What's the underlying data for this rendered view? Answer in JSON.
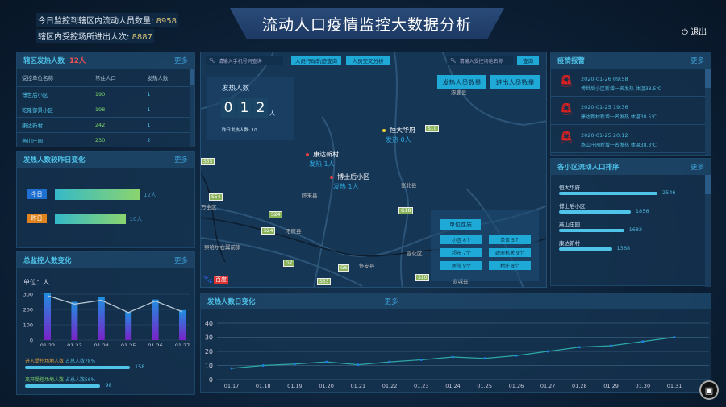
{
  "header": {
    "stat1_label": "今日监控到辖区内流动人员数量:",
    "stat1_value": "8958",
    "stat2_label": "辖区内受控场所进出人次:",
    "stat2_value": "8887",
    "title": "流动人口疫情监控大数据分析",
    "exit": "退出"
  },
  "fever_panel": {
    "title": "辖区发热人数",
    "count": "12人",
    "more": "更多",
    "columns": [
      "受控单位名称",
      "常住人口",
      "发热人数"
    ],
    "rows": [
      [
        "博世后小区",
        "190",
        "1"
      ],
      [
        "乾隆御景小区",
        "198",
        "1"
      ],
      [
        "康达新村",
        "242",
        "1"
      ],
      [
        "燕山庄园",
        "230",
        "2"
      ]
    ]
  },
  "compare_panel": {
    "title": "发热人数较昨日变化",
    "more": "更多",
    "today_label": "今日",
    "today_value": "12人",
    "today": 12,
    "yesterday_label": "昨日",
    "yesterday_value": "10人",
    "yesterday": 10,
    "today_color": "#1e6fd0",
    "yesterday_color": "#e0821e"
  },
  "monitor_panel": {
    "title": "总监控人数变化",
    "more": "更多",
    "unit": "单位：人",
    "in_label": "进入受控场地人数",
    "in_pct": "占总人数78%",
    "in_value": "158",
    "in_fraction": 0.78,
    "out_label": "离开受控场地人数",
    "out_pct": "占总人数56%",
    "out_value": "98",
    "out_fraction": 0.56
  },
  "map": {
    "search1_placeholder": "请输入手机号码查询",
    "btn_track": "人员行动轨迹查询",
    "btn_cross": "人员交叉分析",
    "search2_placeholder": "请输入受控场地名称",
    "btn_query": "查询",
    "btn_fever": "发热人员数量",
    "btn_inout": "进出人员数量",
    "fever_box": {
      "title": "发热人数",
      "digits": [
        "0",
        "1",
        "2"
      ],
      "unit": "人",
      "yesterday": "昨日发热人数: 10"
    },
    "places": [
      {
        "name": "恒大华府",
        "fever": "发热  0人",
        "color": "#f2d230"
      },
      {
        "name": "康达新村",
        "fever": "发热  1人",
        "color": "#e04040"
      },
      {
        "name": "博士后小区",
        "fever": "发热  1人",
        "color": "#e04040"
      }
    ],
    "towns": [
      "涿鹿县",
      "怀来县",
      "阳原县",
      "怀安县",
      "万全区",
      "察哈尔右翼前旗",
      "赤城县",
      "宣化区",
      "张北县"
    ],
    "highways": [
      "S10",
      "S55",
      "S54",
      "S24",
      "G7",
      "G6",
      "S33",
      "G18"
    ],
    "unit_box": {
      "title": "单位性质",
      "items": [
        "小区    8个",
        "单位    5个",
        "超市    7个",
        "政府机关 9个",
        "医院    9个",
        "村庄    8个"
      ]
    },
    "logo": "百度"
  },
  "alerts": {
    "title": "疫情报警",
    "more": "更多",
    "items": [
      {
        "time": "2020-01-26  09:58",
        "text": "博世后小区新增一名发热  体温38.5℃"
      },
      {
        "time": "2020-01-25  19:36",
        "text": "康达新村新增一名发热  体温38.5℃"
      },
      {
        "time": "2020-01-25  20:12",
        "text": "燕山庄园新增一名发热  体温38.3℃"
      }
    ]
  },
  "ranking": {
    "title": "各小区流动人口排序",
    "more": "更多",
    "items": [
      {
        "name": "恒大华府",
        "value": 2546
      },
      {
        "name": "博士后小区",
        "value": 1856
      },
      {
        "name": "燕山庄园",
        "value": 1682
      },
      {
        "name": "康达新村",
        "value": 1368
      }
    ]
  },
  "chart_data": [
    {
      "type": "bar",
      "title": "总监控人数变化",
      "ylabel": "单位：人",
      "categories": [
        "01.22",
        "01.23",
        "01.24",
        "01.25",
        "01.26",
        "01.27"
      ],
      "values": [
        310,
        250,
        280,
        185,
        265,
        195
      ],
      "line_values": [
        290,
        235,
        260,
        180,
        255,
        185
      ],
      "ylim": [
        0,
        300
      ],
      "yticks": [
        0,
        100,
        200,
        300
      ],
      "grid": true
    },
    {
      "type": "line",
      "title": "发热人数日变化",
      "more": "更多",
      "categories": [
        "01.17",
        "01.18",
        "01.19",
        "01.20",
        "01.21",
        "01.22",
        "01.23",
        "01.24",
        "01.25",
        "01.26",
        "01.27",
        "01.28",
        "01.29",
        "01.30",
        "01.31"
      ],
      "values": [
        8,
        10,
        11,
        12.5,
        10.5,
        12.5,
        14,
        16,
        15,
        17,
        20,
        23,
        24,
        27,
        30
      ],
      "ylim": [
        0,
        40
      ],
      "yticks": [
        0,
        10,
        20,
        30,
        40
      ],
      "grid": true
    }
  ]
}
